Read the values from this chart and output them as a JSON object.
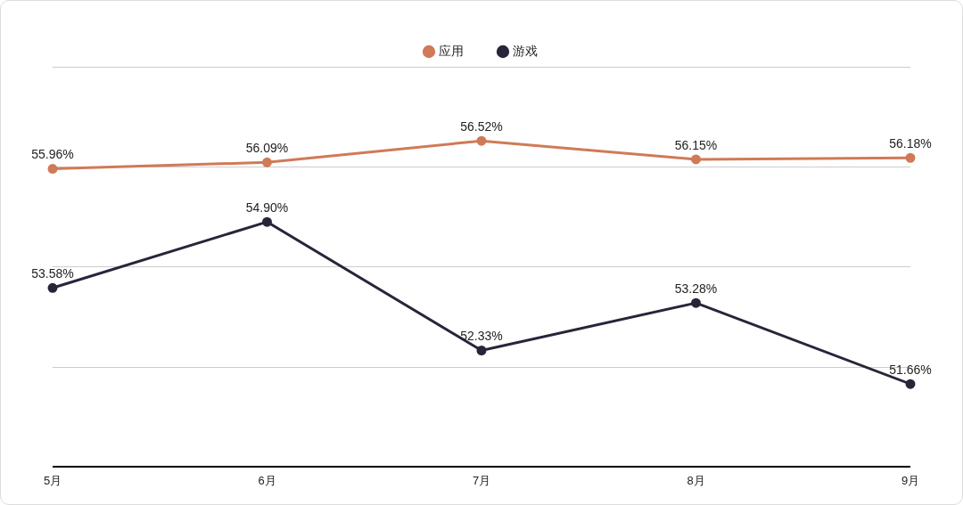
{
  "chart_data": {
    "type": "line",
    "categories": [
      "5月",
      "6月",
      "7月",
      "8月",
      "9月"
    ],
    "series": [
      {
        "name": "应用",
        "color": "#d07a57",
        "values": [
          55.96,
          56.09,
          56.52,
          56.15,
          56.18
        ],
        "value_labels": [
          "55.96%",
          "56.09%",
          "56.52%",
          "56.15%",
          "56.18%"
        ]
      },
      {
        "name": "游戏",
        "color": "#28253a",
        "values": [
          53.58,
          54.9,
          52.33,
          53.28,
          51.66
        ],
        "value_labels": [
          "53.58%",
          "54.90%",
          "52.33%",
          "53.28%",
          "51.66%"
        ]
      }
    ],
    "tick_labels": "x",
    "grid": "y",
    "legend": "top",
    "marker": "circle",
    "line_style": "solid"
  }
}
